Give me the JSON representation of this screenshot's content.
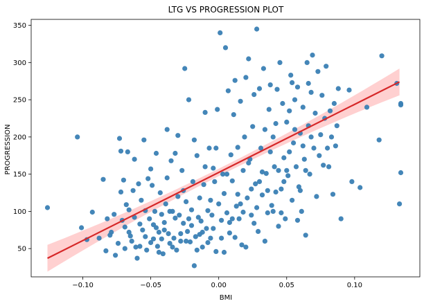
{
  "chart_data": {
    "type": "scatter",
    "title": "LTG VS PROGRESSION PLOT",
    "xlabel": "BMI",
    "ylabel": "PROGRESSION",
    "xlim": [
      -0.138,
      0.148
    ],
    "ylim": [
      12,
      358
    ],
    "x_ticks": [
      -0.1,
      -0.05,
      0.0,
      0.05,
      0.1
    ],
    "x_tick_labels": [
      "−0.10",
      "−0.05",
      "0.00",
      "0.05",
      "0.10"
    ],
    "y_ticks": [
      50,
      100,
      150,
      200,
      250,
      300,
      350
    ],
    "y_tick_labels": [
      "50",
      "100",
      "150",
      "200",
      "250",
      "300",
      "350"
    ],
    "grid": false,
    "legend": "none",
    "colors": {
      "points": "#3a7fb4",
      "regression_line": "#d62728",
      "confidence_band": "#ffc8c8"
    },
    "regression": {
      "x_range": [
        -0.126,
        0.133
      ],
      "y_at_x_min": 37,
      "y_at_x_max": 274,
      "ci_halfwidth_ends": 18,
      "ci_halfwidth_center": 5
    },
    "points": [
      [
        -0.126,
        105
      ],
      [
        -0.104,
        200
      ],
      [
        -0.101,
        78
      ],
      [
        -0.097,
        62
      ],
      [
        -0.093,
        99
      ],
      [
        -0.088,
        64
      ],
      [
        -0.085,
        143
      ],
      [
        -0.083,
        47
      ],
      [
        -0.082,
        90
      ],
      [
        -0.08,
        68
      ],
      [
        -0.079,
        72
      ],
      [
        -0.077,
        96
      ],
      [
        -0.076,
        41
      ],
      [
        -0.074,
        57
      ],
      [
        -0.073,
        198
      ],
      [
        -0.072,
        181
      ],
      [
        -0.071,
        88
      ],
      [
        -0.07,
        142
      ],
      [
        -0.069,
        50
      ],
      [
        -0.068,
        109
      ],
      [
        -0.067,
        180
      ],
      [
        -0.066,
        72
      ],
      [
        -0.065,
        67
      ],
      [
        -0.064,
        60
      ],
      [
        -0.063,
        128
      ],
      [
        -0.062,
        92
      ],
      [
        -0.061,
        52
      ],
      [
        -0.06,
        37
      ],
      [
        -0.059,
        137
      ],
      [
        -0.058,
        83
      ],
      [
        -0.057,
        115
      ],
      [
        -0.056,
        75
      ],
      [
        -0.055,
        196
      ],
      [
        -0.054,
        66
      ],
      [
        -0.053,
        48
      ],
      [
        -0.052,
        144
      ],
      [
        -0.051,
        90
      ],
      [
        -0.05,
        58
      ],
      [
        -0.049,
        135
      ],
      [
        -0.048,
        63
      ],
      [
        -0.047,
        100
      ],
      [
        -0.046,
        178
      ],
      [
        -0.045,
        53
      ],
      [
        -0.044,
        72
      ],
      [
        -0.043,
        125
      ],
      [
        -0.042,
        96
      ],
      [
        -0.041,
        43
      ],
      [
        -0.04,
        85
      ],
      [
        -0.039,
        110
      ],
      [
        -0.038,
        210
      ],
      [
        -0.037,
        70
      ],
      [
        -0.036,
        57
      ],
      [
        -0.035,
        168
      ],
      [
        -0.034,
        100
      ],
      [
        -0.033,
        64
      ],
      [
        -0.032,
        178
      ],
      [
        -0.031,
        48
      ],
      [
        -0.03,
        120
      ],
      [
        -0.029,
        95
      ],
      [
        -0.028,
        60
      ],
      [
        -0.027,
        155
      ],
      [
        -0.026,
        84
      ],
      [
        -0.025,
        292
      ],
      [
        -0.024,
        113
      ],
      [
        -0.023,
        73
      ],
      [
        -0.022,
        250
      ],
      [
        -0.021,
        59
      ],
      [
        -0.02,
        102
      ],
      [
        -0.019,
        140
      ],
      [
        -0.018,
        27
      ],
      [
        -0.017,
        66
      ],
      [
        -0.016,
        175
      ],
      [
        -0.015,
        92
      ],
      [
        -0.014,
        118
      ],
      [
        -0.013,
        87
      ],
      [
        -0.012,
        52
      ],
      [
        -0.011,
        136
      ],
      [
        -0.01,
        233
      ],
      [
        -0.009,
        77
      ],
      [
        -0.008,
        101
      ],
      [
        -0.007,
        185
      ],
      [
        -0.006,
        64
      ],
      [
        -0.005,
        95
      ],
      [
        -0.004,
        158
      ],
      [
        -0.003,
        140
      ],
      [
        -0.002,
        46
      ],
      [
        -0.001,
        237
      ],
      [
        0.0,
        110
      ],
      [
        0.001,
        340
      ],
      [
        0.002,
        88
      ],
      [
        0.003,
        150
      ],
      [
        0.004,
        124
      ],
      [
        0.005,
        320
      ],
      [
        0.006,
        98
      ],
      [
        0.007,
        262
      ],
      [
        0.008,
        71
      ],
      [
        0.009,
        176
      ],
      [
        0.01,
        141
      ],
      [
        0.011,
        230
      ],
      [
        0.012,
        276
      ],
      [
        0.013,
        107
      ],
      [
        0.014,
        186
      ],
      [
        0.015,
        90
      ],
      [
        0.016,
        248
      ],
      [
        0.017,
        55
      ],
      [
        0.018,
        155
      ],
      [
        0.019,
        200
      ],
      [
        0.02,
        280
      ],
      [
        0.021,
        118
      ],
      [
        0.022,
        305
      ],
      [
        0.023,
        170
      ],
      [
        0.024,
        95
      ],
      [
        0.025,
        214
      ],
      [
        0.026,
        257
      ],
      [
        0.027,
        137
      ],
      [
        0.028,
        345
      ],
      [
        0.029,
        73
      ],
      [
        0.03,
        265
      ],
      [
        0.031,
        185
      ],
      [
        0.032,
        122
      ],
      [
        0.033,
        292
      ],
      [
        0.034,
        210
      ],
      [
        0.035,
        151
      ],
      [
        0.036,
        98
      ],
      [
        0.037,
        237
      ],
      [
        0.038,
        270
      ],
      [
        0.039,
        108
      ],
      [
        0.04,
        200
      ],
      [
        0.041,
        160
      ],
      [
        0.042,
        218
      ],
      [
        0.043,
        264
      ],
      [
        0.044,
        80
      ],
      [
        0.045,
        300
      ],
      [
        0.046,
        130
      ],
      [
        0.047,
        245
      ],
      [
        0.048,
        172
      ],
      [
        0.049,
        90
      ],
      [
        0.05,
        220
      ],
      [
        0.051,
        148
      ],
      [
        0.052,
        235
      ],
      [
        0.053,
        283
      ],
      [
        0.054,
        115
      ],
      [
        0.055,
        192
      ],
      [
        0.056,
        250
      ],
      [
        0.057,
        160
      ],
      [
        0.058,
        267
      ],
      [
        0.059,
        133
      ],
      [
        0.06,
        205
      ],
      [
        0.061,
        100
      ],
      [
        0.062,
        240
      ],
      [
        0.063,
        170
      ],
      [
        0.064,
        68
      ],
      [
        0.065,
        300
      ],
      [
        0.066,
        215
      ],
      [
        0.067,
        150
      ],
      [
        0.068,
        260
      ],
      [
        0.069,
        310
      ],
      [
        0.07,
        185
      ],
      [
        0.071,
        232
      ],
      [
        0.072,
        120
      ],
      [
        0.073,
        288
      ],
      [
        0.074,
        175
      ],
      [
        0.075,
        203
      ],
      [
        0.076,
        256
      ],
      [
        0.077,
        162
      ],
      [
        0.078,
        225
      ],
      [
        0.079,
        295
      ],
      [
        0.08,
        185
      ],
      [
        0.081,
        160
      ],
      [
        0.082,
        235
      ],
      [
        0.083,
        200
      ],
      [
        0.084,
        123
      ],
      [
        0.085,
        245
      ],
      [
        0.086,
        188
      ],
      [
        0.087,
        215
      ],
      [
        0.088,
        265
      ],
      [
        0.09,
        90
      ],
      [
        0.096,
        263
      ],
      [
        0.098,
        140
      ],
      [
        0.104,
        132
      ],
      [
        0.109,
        240
      ],
      [
        0.118,
        196
      ],
      [
        0.12,
        309
      ],
      [
        0.131,
        272
      ],
      [
        0.133,
        110
      ],
      [
        0.134,
        245
      ],
      [
        0.134,
        152
      ],
      [
        0.134,
        243
      ],
      [
        -0.072,
        126
      ],
      [
        -0.069,
        79
      ],
      [
        -0.066,
        102
      ],
      [
        -0.062,
        170
      ],
      [
        -0.058,
        53
      ],
      [
        -0.054,
        101
      ],
      [
        -0.05,
        157
      ],
      [
        -0.046,
        78
      ],
      [
        -0.042,
        63
      ],
      [
        -0.038,
        145
      ],
      [
        -0.034,
        52
      ],
      [
        -0.03,
        202
      ],
      [
        -0.026,
        128
      ],
      [
        -0.022,
        90
      ],
      [
        -0.018,
        196
      ],
      [
        -0.014,
        69
      ],
      [
        -0.01,
        160
      ],
      [
        -0.006,
        115
      ],
      [
        -0.002,
        185
      ],
      [
        0.002,
        64
      ],
      [
        0.006,
        150
      ],
      [
        0.01,
        90
      ],
      [
        0.014,
        123
      ],
      [
        0.018,
        99
      ],
      [
        0.022,
        165
      ],
      [
        0.026,
        84
      ],
      [
        0.03,
        140
      ],
      [
        0.034,
        60
      ],
      [
        0.038,
        180
      ],
      [
        0.042,
        126
      ],
      [
        0.046,
        98
      ],
      [
        0.05,
        155
      ],
      [
        0.054,
        273
      ],
      [
        0.058,
        88
      ],
      [
        0.062,
        188
      ],
      [
        0.066,
        272
      ],
      [
        -0.048,
        82
      ],
      [
        -0.044,
        45
      ],
      [
        -0.04,
        75
      ],
      [
        -0.036,
        100
      ],
      [
        -0.032,
        91
      ],
      [
        -0.028,
        70
      ],
      [
        -0.024,
        60
      ],
      [
        -0.02,
        81
      ],
      [
        -0.016,
        48
      ],
      [
        -0.012,
        72
      ],
      [
        -0.008,
        58
      ],
      [
        -0.004,
        77
      ],
      [
        0.004,
        45
      ],
      [
        0.008,
        85
      ],
      [
        0.012,
        65
      ],
      [
        0.016,
        110
      ],
      [
        0.02,
        52
      ],
      [
        0.024,
        130
      ],
      [
        0.028,
        105
      ],
      [
        0.032,
        153
      ],
      [
        0.036,
        128
      ],
      [
        0.04,
        100
      ],
      [
        0.044,
        155
      ],
      [
        0.048,
        140
      ],
      [
        0.052,
        180
      ],
      [
        0.056,
        210
      ],
      [
        0.06,
        128
      ],
      [
        0.064,
        155
      ],
      [
        0.068,
        200
      ]
    ]
  }
}
